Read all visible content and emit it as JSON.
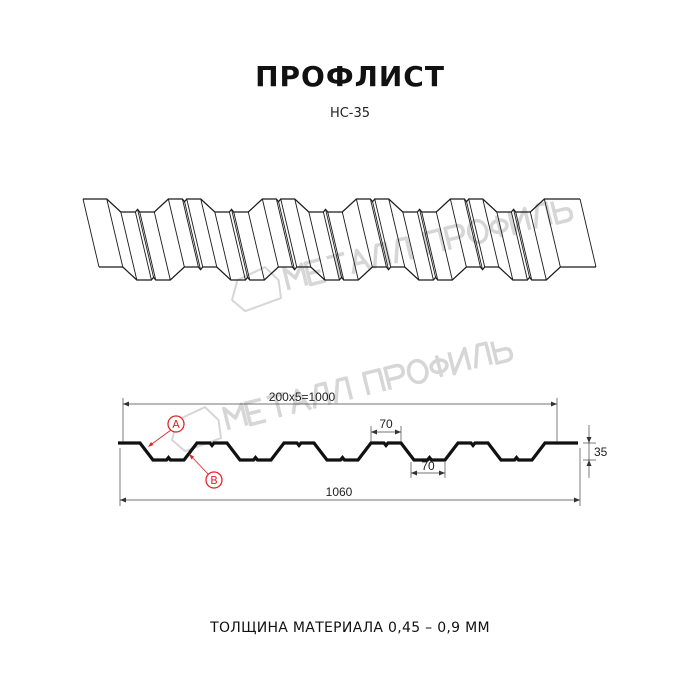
{
  "header": {
    "title": "ПРОФЛИСТ",
    "subtitle": "НС-35"
  },
  "watermark": {
    "logo_text": "МЕТАЛЛ ПРОФИЛЬ"
  },
  "section": {
    "pitch_label": "200x5=1000",
    "top_width_label": "70",
    "bottom_width_label": "70",
    "height_label": "35",
    "total_width_label": "1060",
    "callout_a": "A",
    "callout_b": "B"
  },
  "footer": {
    "thickness": "ТОЛЩИНА МАТЕРИАЛА 0,45 – 0,9 ММ"
  },
  "colors": {
    "line": "#1a1a1a",
    "callout": "#e0262b",
    "watermark": "#d6d6d6"
  }
}
